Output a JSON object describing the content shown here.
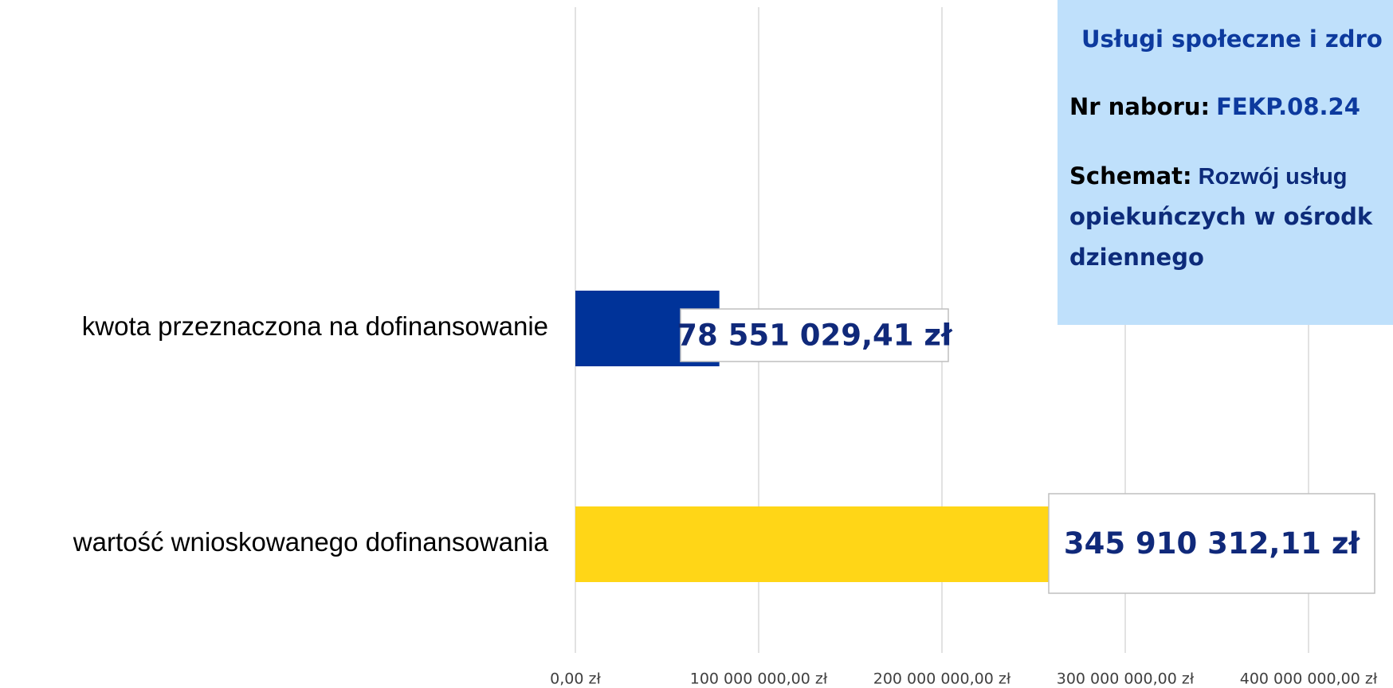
{
  "chart_data": {
    "type": "bar",
    "orientation": "horizontal",
    "categories": [
      "kwota przeznaczona na dofinansowanie",
      "wartość wnioskowanego dofinansowania"
    ],
    "values": [
      78551029.41,
      345910312.11
    ],
    "value_labels": [
      "78 551 029,41 zł",
      "345 910 312,11 zł"
    ],
    "colors": [
      "#003399",
      "#ffd617"
    ],
    "xlim": [
      0,
      400000000
    ],
    "xticks": [
      {
        "value": 0,
        "label": "0,00 zł"
      },
      {
        "value": 100000000,
        "label": "100 000 000,00 zł"
      },
      {
        "value": 200000000,
        "label": "200 000 000,00 zł"
      },
      {
        "value": 300000000,
        "label": "300 000 000,00 zł"
      },
      {
        "value": 400000000,
        "label": "400 000 000,00 zł"
      }
    ],
    "grid": true,
    "info_box": {
      "title": "Usługi społeczne i zdro",
      "nabor_label": "Nr naboru:",
      "nabor_value": "FEKP.08.24",
      "schemat_label": "Schemat:",
      "schemat_lines": [
        "Rozwój usług",
        "opiekuńczych w ośrodk",
        "dziennego"
      ]
    }
  }
}
